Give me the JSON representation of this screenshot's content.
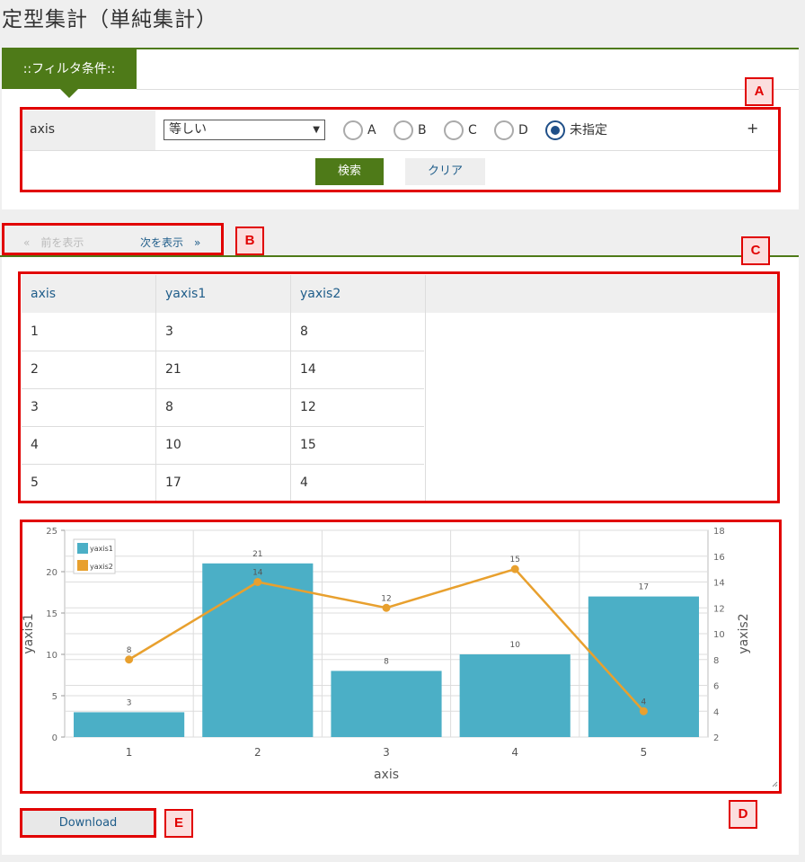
{
  "page": {
    "title": "定型集計（単純集計）"
  },
  "filter": {
    "tab_label": "::フィルタ条件::",
    "field_label": "axis",
    "operator_value": "等しい",
    "radios": [
      {
        "label": "A",
        "checked": false
      },
      {
        "label": "B",
        "checked": false
      },
      {
        "label": "C",
        "checked": false
      },
      {
        "label": "D",
        "checked": false
      },
      {
        "label": "未指定",
        "checked": true
      }
    ],
    "add_label": "+",
    "search_label": "検索",
    "clear_label": "クリア"
  },
  "pager": {
    "prev_label": "«　前を表示",
    "next_label": "次を表示　»"
  },
  "table": {
    "columns": [
      "axis",
      "yaxis1",
      "yaxis2"
    ],
    "rows": [
      [
        "1",
        "3",
        "8"
      ],
      [
        "2",
        "21",
        "14"
      ],
      [
        "3",
        "8",
        "12"
      ],
      [
        "4",
        "10",
        "15"
      ],
      [
        "5",
        "17",
        "4"
      ]
    ]
  },
  "download_label": "Download",
  "annotations": {
    "A": "A",
    "B": "B",
    "C": "C",
    "D": "D",
    "E": "E"
  },
  "colors": {
    "accent": "#4e7a18",
    "bar": "#4bafc6",
    "line": "#e8a02e",
    "annotation": "#e10000"
  },
  "chart_data": {
    "type": "bar",
    "categories": [
      "1",
      "2",
      "3",
      "4",
      "5"
    ],
    "series": [
      {
        "name": "yaxis1",
        "type": "bar",
        "axis": "left",
        "values": [
          3,
          21,
          8,
          10,
          17
        ]
      },
      {
        "name": "yaxis2",
        "type": "line",
        "axis": "right",
        "values": [
          8,
          14,
          12,
          15,
          4
        ]
      }
    ],
    "xlabel": "axis",
    "ylabel": "yaxis1",
    "y2label": "yaxis2",
    "ylim": [
      0,
      25
    ],
    "y2lim": [
      2,
      18
    ],
    "yticks": [
      0,
      5,
      10,
      15,
      20,
      25
    ],
    "y2ticks": [
      2,
      4,
      6,
      8,
      10,
      12,
      14,
      16,
      18
    ],
    "grid": true,
    "legend": "top-left"
  }
}
